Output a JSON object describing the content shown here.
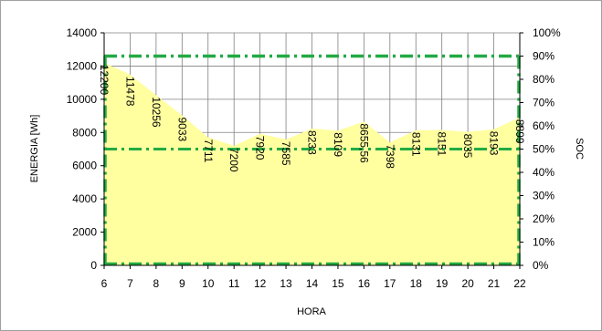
{
  "chart_data": {
    "type": "area",
    "x": [
      6,
      7,
      8,
      9,
      10,
      11,
      12,
      13,
      14,
      15,
      16,
      17,
      18,
      19,
      20,
      21,
      22
    ],
    "values": [
      12200,
      11478,
      10256,
      9033,
      7711,
      7200,
      7920,
      7585,
      8233,
      8109,
      8655.56,
      7398,
      8131,
      8151,
      8035,
      8193,
      8899
    ],
    "data_labels": [
      "12200",
      "11478",
      "10256",
      "9033",
      "7711",
      "7200",
      "7920",
      "7585",
      "8233",
      "8109",
      "8655,56",
      "7398",
      "8131",
      "8151",
      "8035",
      "8193",
      "8899"
    ],
    "xlabel": "HORA",
    "ylabel": "ENERGIA [Wh]",
    "y2label": "SOC",
    "xlim": [
      6,
      22
    ],
    "ylim": [
      0,
      14000
    ],
    "y_ticks": [
      0,
      2000,
      4000,
      6000,
      8000,
      10000,
      12000,
      14000
    ],
    "y2lim": [
      0,
      100
    ],
    "y2_ticks": [
      "0%",
      "10%",
      "20%",
      "30%",
      "40%",
      "50%",
      "60%",
      "70%",
      "80%",
      "90%",
      "100%"
    ],
    "soc_reference_lines": [
      90,
      50,
      0
    ],
    "grid": true,
    "legend": "none",
    "colors": {
      "area_fill": "#ffffa0",
      "reference_line": "#22aa44",
      "grid": "#808080"
    }
  }
}
